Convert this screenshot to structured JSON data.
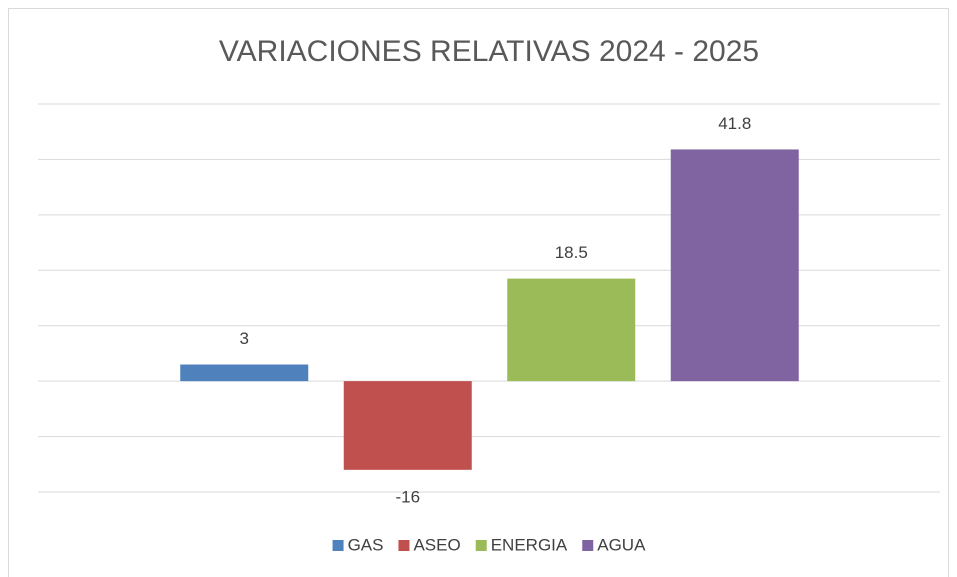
{
  "chart_data": {
    "type": "bar",
    "title": "VARIACIONES RELATIVAS 2024 - 2025",
    "categories": [
      null
    ],
    "series": [
      {
        "name": "GAS",
        "color": "#4f81bd",
        "values": [
          3
        ]
      },
      {
        "name": "ASEO",
        "color": "#c0504d",
        "values": [
          -16
        ]
      },
      {
        "name": "ENERGIA",
        "color": "#9bbb59",
        "values": [
          18.5
        ]
      },
      {
        "name": "AGUA",
        "color": "#8064a2",
        "values": [
          41.8
        ]
      }
    ],
    "ylim": [
      -20,
      50
    ],
    "yticks": [
      -20,
      -10,
      0,
      10,
      20,
      30,
      40,
      50
    ],
    "grid": true,
    "legend": "bottom"
  }
}
